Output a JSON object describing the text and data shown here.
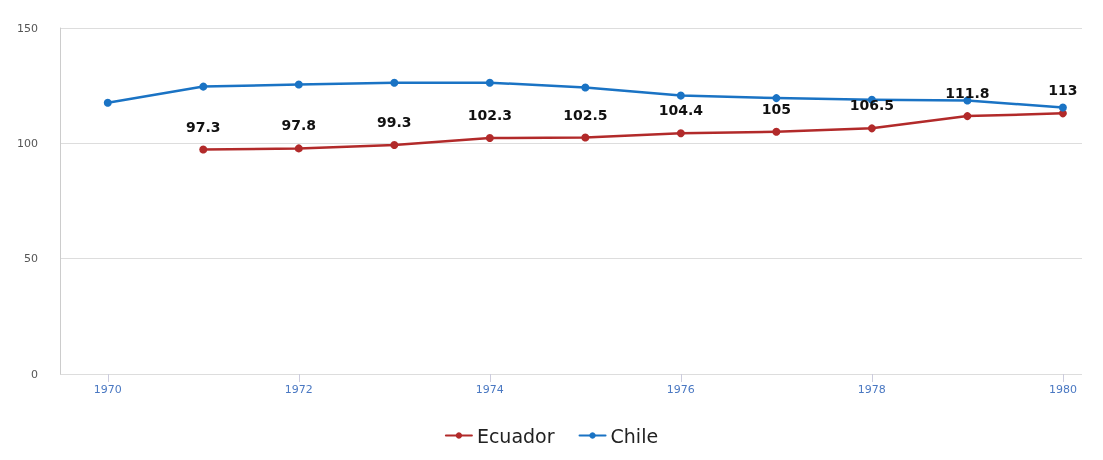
{
  "chart_data": {
    "type": "line",
    "x": [
      1970,
      1971,
      1972,
      1973,
      1974,
      1975,
      1976,
      1977,
      1978,
      1979,
      1980
    ],
    "xlim": [
      1969.5,
      1980.2
    ],
    "xticks": [
      1970,
      1972,
      1974,
      1976,
      1978,
      1980
    ],
    "ylim": [
      0,
      150
    ],
    "yticks": [
      0,
      50,
      100,
      150
    ],
    "grid": "y",
    "legend": "bottom",
    "marker": "circle",
    "line_style": "solid",
    "series": [
      {
        "name": "Ecuador",
        "color": "#b22a2a",
        "values": [
          null,
          97.3,
          97.8,
          99.3,
          102.3,
          102.5,
          104.4,
          105,
          106.5,
          111.8,
          113
        ],
        "value_labels": [
          null,
          "97.3",
          "97.8",
          "99.3",
          "102.3",
          "102.5",
          "104.4",
          "105",
          "106.5",
          "111.8",
          "113"
        ]
      },
      {
        "name": "Chile",
        "color": "#1a73c4",
        "values": [
          117.6,
          124.6,
          125.5,
          126.3,
          126.3,
          124.2,
          120.7,
          119.6,
          118.9,
          118.6,
          115.5
        ]
      }
    ]
  }
}
